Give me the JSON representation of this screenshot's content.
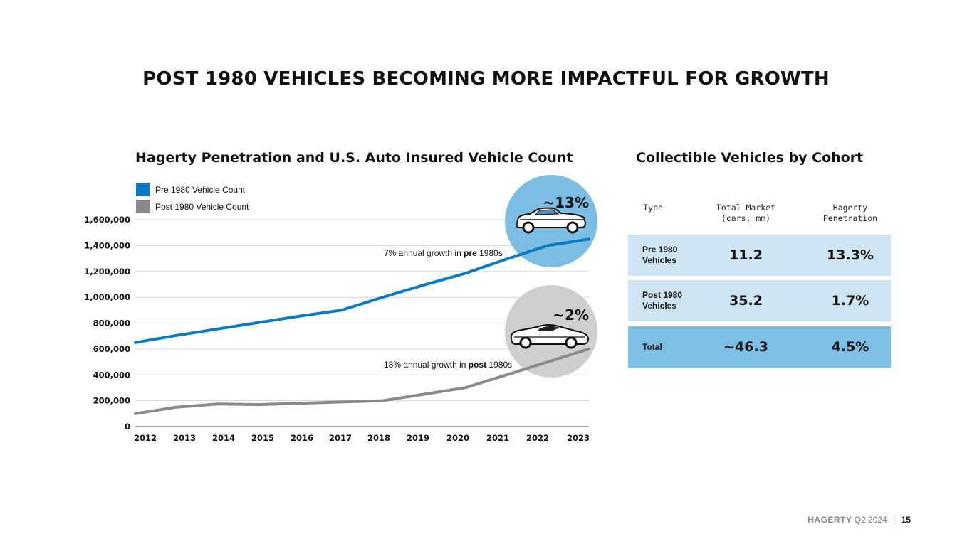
{
  "page_title": "POST 1980 VEHICLES BECOMING MORE IMPACTFUL FOR GROWTH",
  "colors": {
    "pre": "#0a7ac2",
    "post": "#8a8a8a",
    "bubble_pre": "#7bbde3",
    "bubble_post": "#cfcfcf",
    "row_light": "#cfe5f4",
    "row_dark": "#7ebfe5"
  },
  "chart_data": {
    "type": "line",
    "title": "Hagerty Penetration and U.S. Auto Insured Vehicle Count",
    "categories": [
      "2012",
      "2013",
      "2014",
      "2015",
      "2016",
      "2017",
      "2018",
      "2019",
      "2020",
      "2021",
      "2022",
      "2023"
    ],
    "series": [
      {
        "name": "Pre 1980 Vehicle Count",
        "color": "#0a7ac2",
        "values": [
          650000,
          705000,
          755000,
          805000,
          855000,
          900000,
          1000000,
          1095000,
          1185000,
          1295000,
          1400000,
          1450000
        ]
      },
      {
        "name": "Post 1980 Vehicle Count",
        "color": "#8a8a8a",
        "values": [
          100000,
          150000,
          175000,
          170000,
          180000,
          190000,
          200000,
          250000,
          300000,
          400000,
          500000,
          600000
        ]
      }
    ],
    "yticks": [
      "0",
      "200,000",
      "400,000",
      "600,000",
      "800,000",
      "1,000,000",
      "1,200,000",
      "1,400,000",
      "1,600,000"
    ],
    "ylim": [
      0,
      1600000
    ],
    "grid": true,
    "legend": "top-left",
    "annotations": {
      "pre_growth_prefix": "7% annual growth in ",
      "pre_growth_bold": "pre",
      "pre_growth_suffix": " 1980s",
      "post_growth_prefix": "18% annual growth in ",
      "post_growth_bold": "post",
      "post_growth_suffix": " 1980s",
      "pre_penetration": "~13%",
      "post_penetration": "~2%"
    },
    "icons": [
      "classic-car-icon",
      "sports-car-icon"
    ]
  },
  "table": {
    "title": "Collectible Vehicles by Cohort",
    "headers": [
      "Type",
      "Total Market\n(cars, mm)",
      "Hagerty\nPenetration"
    ],
    "rows": [
      {
        "type": "Pre 1980\nVehicles",
        "market": "11.2",
        "penetration": "13.3%"
      },
      {
        "type": "Post 1980\nVehicles",
        "market": "35.2",
        "penetration": "1.7%"
      },
      {
        "type": "Total",
        "market": "~46.3",
        "penetration": "4.5%"
      }
    ]
  },
  "footer": {
    "brand": "HAGERTY",
    "period": "Q2 2024",
    "separator": "|",
    "page": "15"
  }
}
